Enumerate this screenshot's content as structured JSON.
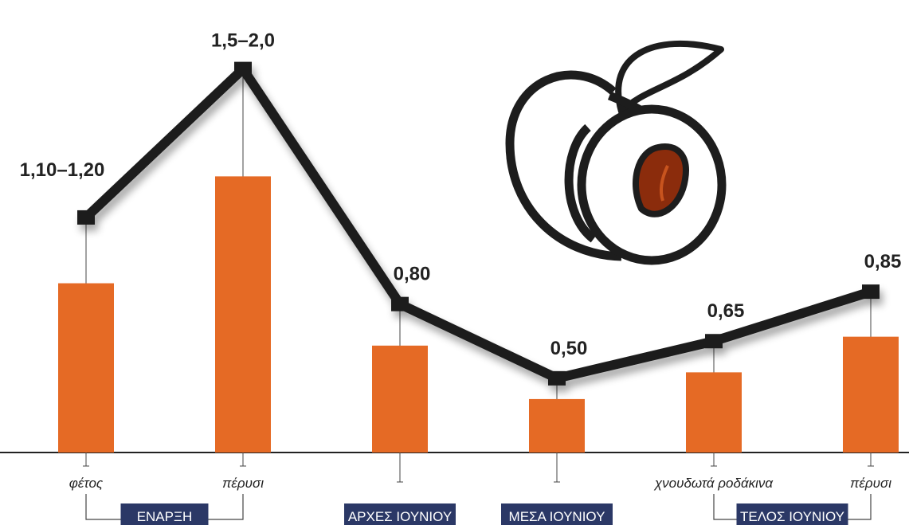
{
  "chart_data": {
    "type": "bar-line",
    "categories": [
      "φέτος",
      "πέρυσι",
      null,
      null,
      "χνουδωτά ροδάκινα",
      "πέρυσι"
    ],
    "groups": [
      "ΕΝΑΡΞΗ",
      "ΑΡΧΕΣ ΙΟΥΝΙΟΥ",
      "ΜΕΣΑ ΙΟΥΝΙΟΥ",
      "ΤΕΛΟΣ ΙΟΥΝΙΟΥ"
    ],
    "low": [
      1.1,
      1.5,
      0.8,
      0.5,
      0.65,
      0.85
    ],
    "high": [
      1.2,
      2.0,
      0.8,
      0.5,
      0.65,
      0.85
    ],
    "value_labels": [
      "1,10–1,20",
      "1,5–2,0",
      "0,80",
      "0,50",
      "0,65",
      "0,85"
    ],
    "ylim": [
      0.2,
      1.9
    ],
    "bar_color": "#e56a25",
    "line_color": "#1d1d1d",
    "group_color": "#2b3866"
  }
}
